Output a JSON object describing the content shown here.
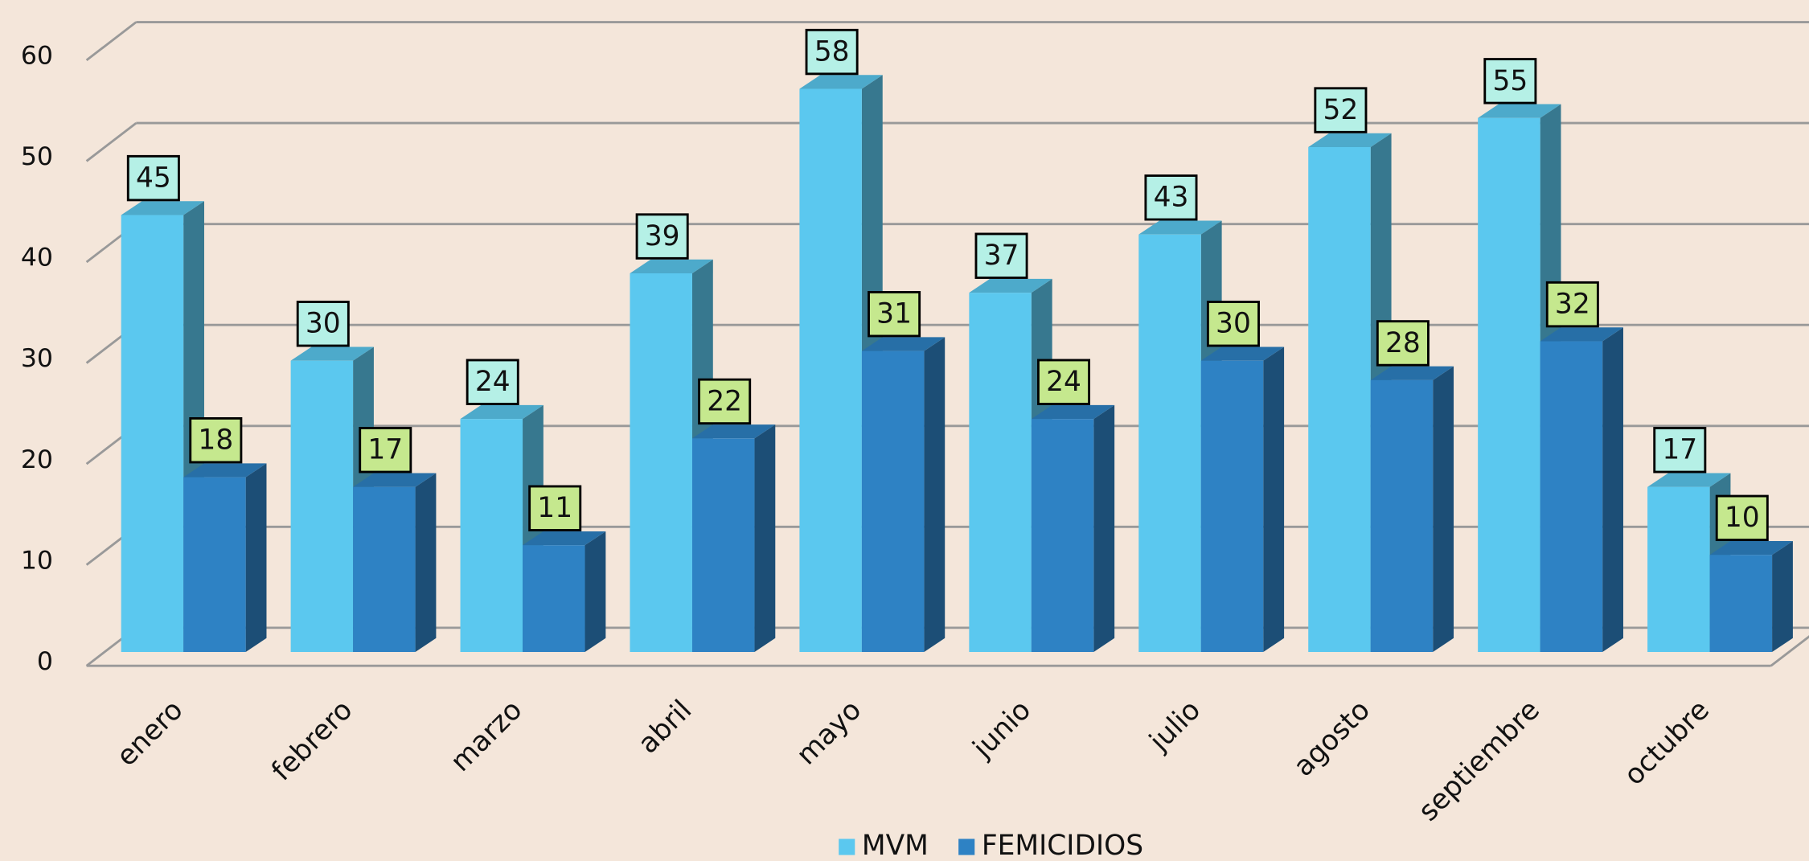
{
  "chart_data": {
    "type": "bar",
    "categories": [
      "enero",
      "febrero",
      "marzo",
      "abril",
      "mayo",
      "junio",
      "julio",
      "agosto",
      "septiembre",
      "octubre"
    ],
    "series": [
      {
        "name": "MVM",
        "color": "#5bc8ef",
        "values": [
          45,
          30,
          24,
          39,
          58,
          37,
          43,
          52,
          55,
          17
        ]
      },
      {
        "name": "FEMICIDIOS",
        "color": "#2e82c4",
        "values": [
          18,
          17,
          11,
          22,
          31,
          24,
          30,
          28,
          32,
          10
        ]
      }
    ],
    "ylim": [
      0,
      60
    ],
    "yticks": [
      0,
      10,
      20,
      30,
      40,
      50,
      60
    ],
    "grid": true,
    "legend": "bottom"
  }
}
